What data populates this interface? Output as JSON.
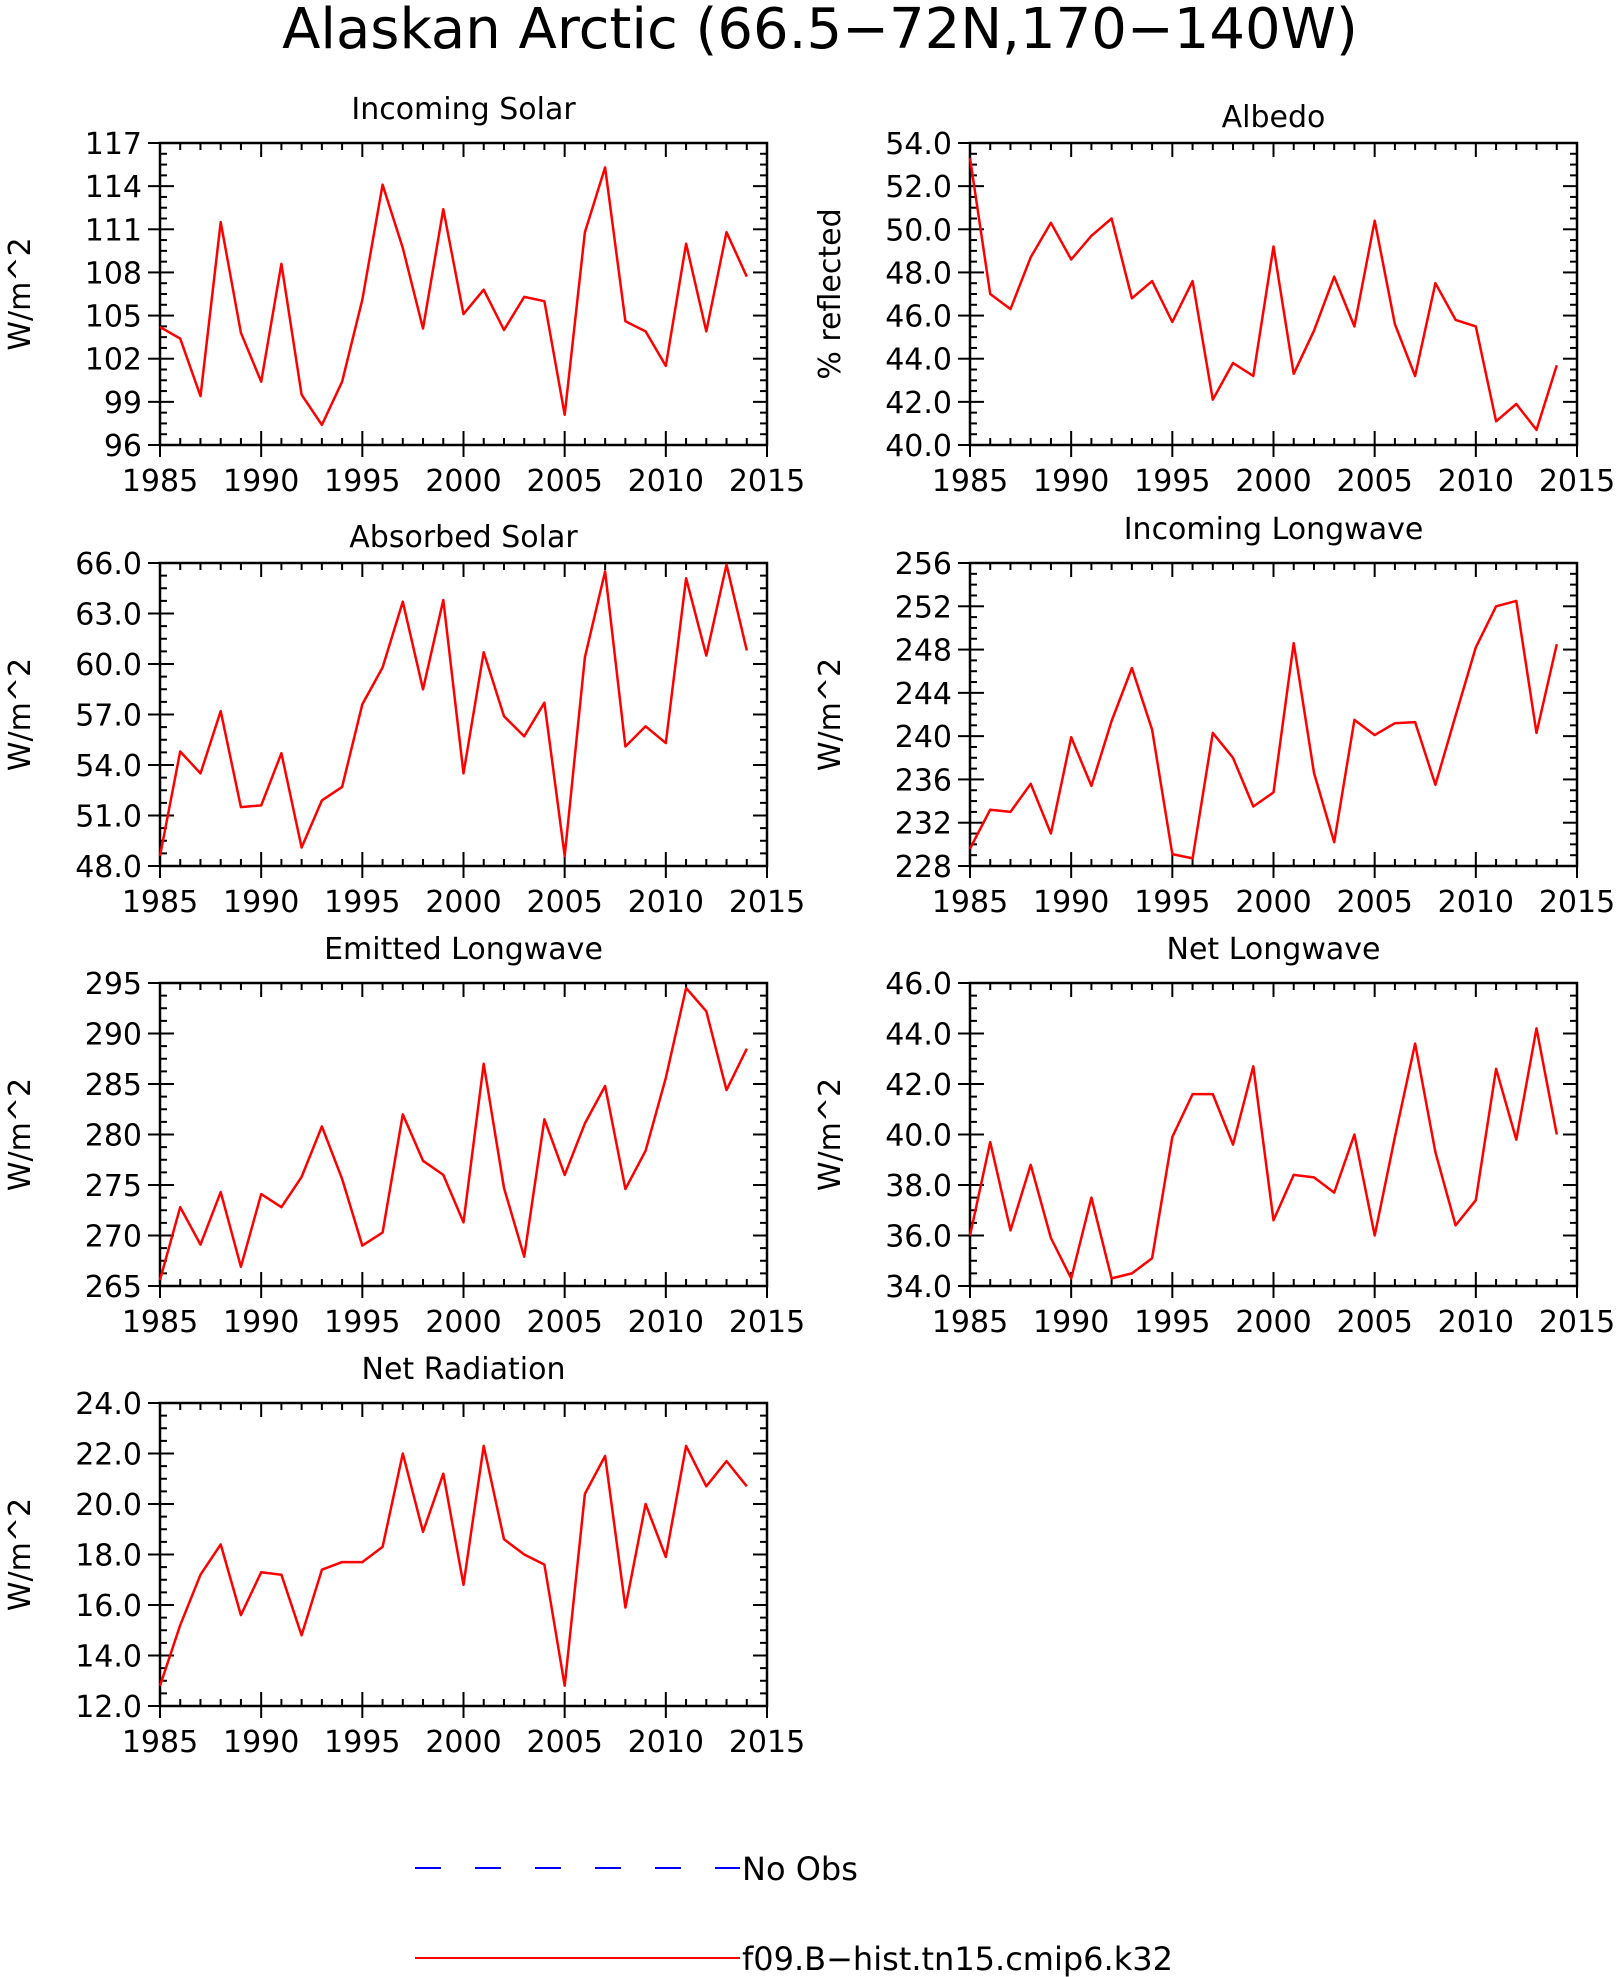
{
  "figure": {
    "title": "Alaskan Arctic (66.5−72N,170−140W)",
    "series_color": "#ff0000",
    "obs_color": "#0000ff"
  },
  "legend": [
    {
      "label": "No Obs",
      "style": "dashed",
      "color": "#0000ff"
    },
    {
      "label": "f09.B−hist.tn15.cmip6.k32",
      "style": "solid",
      "color": "#ff0000"
    }
  ],
  "chart_data": [
    {
      "type": "line",
      "title": "Incoming Solar",
      "ylabel": "W/m^2",
      "xlim": [
        1985,
        2015
      ],
      "xticks": [
        1985,
        1990,
        1995,
        2000,
        2005,
        2010,
        2015
      ],
      "ylim": [
        96,
        117
      ],
      "yticks": [
        "96",
        "99",
        "102",
        "105",
        "108",
        "111",
        "114",
        "117"
      ],
      "x": [
        1985,
        1986,
        1987,
        1988,
        1989,
        1990,
        1991,
        1992,
        1993,
        1994,
        1995,
        1996,
        1997,
        1998,
        1999,
        2000,
        2001,
        2002,
        2003,
        2004,
        2005,
        2006,
        2007,
        2008,
        2009,
        2010,
        2011,
        2012,
        2013,
        2014
      ],
      "series": [
        {
          "values": [
            104.2,
            103.4,
            99.4,
            111.5,
            103.8,
            100.4,
            108.6,
            99.5,
            97.4,
            100.4,
            106.1,
            114.1,
            109.7,
            104.1,
            112.4,
            105.1,
            106.8,
            104.0,
            106.3,
            106.0,
            98.1,
            110.8,
            115.3,
            104.6,
            103.9,
            101.5,
            110.0,
            103.9,
            110.8,
            107.7
          ]
        }
      ]
    },
    {
      "type": "line",
      "title": "Albedo",
      "ylabel": "% reflected",
      "xlim": [
        1985,
        2015
      ],
      "xticks": [
        1985,
        1990,
        1995,
        2000,
        2005,
        2010,
        2015
      ],
      "ylim": [
        40,
        54
      ],
      "yticks": [
        "40.0",
        "42.0",
        "44.0",
        "46.0",
        "48.0",
        "50.0",
        "52.0",
        "54.0"
      ],
      "x": [
        1985,
        1986,
        1987,
        1988,
        1989,
        1990,
        1991,
        1992,
        1993,
        1994,
        1995,
        1996,
        1997,
        1998,
        1999,
        2000,
        2001,
        2002,
        2003,
        2004,
        2005,
        2006,
        2007,
        2008,
        2009,
        2010,
        2011,
        2012,
        2013,
        2014
      ],
      "series": [
        {
          "values": [
            53.3,
            47.0,
            46.3,
            48.7,
            50.3,
            48.6,
            49.7,
            50.5,
            46.8,
            47.6,
            45.7,
            47.6,
            42.1,
            43.8,
            43.2,
            49.2,
            43.3,
            45.3,
            47.8,
            45.5,
            50.4,
            45.6,
            43.2,
            47.5,
            45.8,
            45.5,
            41.1,
            41.9,
            40.7,
            43.7
          ]
        }
      ]
    },
    {
      "type": "line",
      "title": "Absorbed Solar",
      "ylabel": "W/m^2",
      "xlim": [
        1985,
        2015
      ],
      "xticks": [
        1985,
        1990,
        1995,
        2000,
        2005,
        2010,
        2015
      ],
      "ylim": [
        48,
        66
      ],
      "yticks": [
        "48.0",
        "51.0",
        "54.0",
        "57.0",
        "60.0",
        "63.0",
        "66.0"
      ],
      "x": [
        1985,
        1986,
        1987,
        1988,
        1989,
        1990,
        1991,
        1992,
        1993,
        1994,
        1995,
        1996,
        1997,
        1998,
        1999,
        2000,
        2001,
        2002,
        2003,
        2004,
        2005,
        2006,
        2007,
        2008,
        2009,
        2010,
        2011,
        2012,
        2013,
        2014
      ],
      "series": [
        {
          "values": [
            48.6,
            54.8,
            53.5,
            57.2,
            51.5,
            51.6,
            54.7,
            49.1,
            51.9,
            52.7,
            57.6,
            59.8,
            63.7,
            58.5,
            63.8,
            53.5,
            60.7,
            56.9,
            55.7,
            57.7,
            48.6,
            60.4,
            65.5,
            55.1,
            56.3,
            55.3,
            65.1,
            60.5,
            65.9,
            60.8
          ]
        }
      ]
    },
    {
      "type": "line",
      "title": "Incoming Longwave",
      "ylabel": "W/m^2",
      "xlim": [
        1985,
        2015
      ],
      "xticks": [
        1985,
        1990,
        1995,
        2000,
        2005,
        2010,
        2015
      ],
      "ylim": [
        228,
        256
      ],
      "yticks": [
        "228",
        "232",
        "236",
        "240",
        "244",
        "248",
        "252",
        "256"
      ],
      "x": [
        1985,
        1986,
        1987,
        1988,
        1989,
        1990,
        1991,
        1992,
        1993,
        1994,
        1995,
        1996,
        1997,
        1998,
        1999,
        2000,
        2001,
        2002,
        2003,
        2004,
        2005,
        2006,
        2007,
        2008,
        2009,
        2010,
        2011,
        2012,
        2013,
        2014
      ],
      "series": [
        {
          "values": [
            229.6,
            233.2,
            233.0,
            235.6,
            231.0,
            239.9,
            235.4,
            241.4,
            246.3,
            240.6,
            229.1,
            228.7,
            240.3,
            238.0,
            233.5,
            234.8,
            248.6,
            236.6,
            230.2,
            241.5,
            240.1,
            241.2,
            241.3,
            235.5,
            241.9,
            248.2,
            252.0,
            252.5,
            240.3,
            248.5
          ]
        }
      ]
    },
    {
      "type": "line",
      "title": "Emitted Longwave",
      "ylabel": "W/m^2",
      "xlim": [
        1985,
        2015
      ],
      "xticks": [
        1985,
        1990,
        1995,
        2000,
        2005,
        2010,
        2015
      ],
      "ylim": [
        265,
        295
      ],
      "yticks": [
        "265",
        "270",
        "275",
        "280",
        "285",
        "290",
        "295"
      ],
      "x": [
        1985,
        1986,
        1987,
        1988,
        1989,
        1990,
        1991,
        1992,
        1993,
        1994,
        1995,
        1996,
        1997,
        1998,
        1999,
        2000,
        2001,
        2002,
        2003,
        2004,
        2005,
        2006,
        2007,
        2008,
        2009,
        2010,
        2011,
        2012,
        2013,
        2014
      ],
      "series": [
        {
          "values": [
            265.6,
            272.8,
            269.1,
            274.3,
            266.9,
            274.1,
            272.8,
            275.8,
            280.8,
            275.6,
            269.0,
            270.3,
            282.0,
            277.4,
            276.0,
            271.3,
            287.0,
            274.7,
            267.9,
            281.5,
            276.0,
            281.1,
            284.8,
            274.6,
            278.4,
            285.6,
            294.5,
            292.2,
            284.4,
            288.5
          ]
        }
      ]
    },
    {
      "type": "line",
      "title": "Net Longwave",
      "ylabel": "W/m^2",
      "xlim": [
        1985,
        2015
      ],
      "xticks": [
        1985,
        1990,
        1995,
        2000,
        2005,
        2010,
        2015
      ],
      "ylim": [
        34,
        46
      ],
      "yticks": [
        "34.0",
        "36.0",
        "38.0",
        "40.0",
        "42.0",
        "44.0",
        "46.0"
      ],
      "x": [
        1985,
        1986,
        1987,
        1988,
        1989,
        1990,
        1991,
        1992,
        1993,
        1994,
        1995,
        1996,
        1997,
        1998,
        1999,
        2000,
        2001,
        2002,
        2003,
        2004,
        2005,
        2006,
        2007,
        2008,
        2009,
        2010,
        2011,
        2012,
        2013,
        2014
      ],
      "series": [
        {
          "values": [
            36.0,
            39.7,
            36.2,
            38.8,
            35.9,
            34.3,
            37.5,
            34.3,
            34.5,
            35.1,
            39.9,
            41.6,
            41.6,
            39.6,
            42.7,
            36.6,
            38.4,
            38.3,
            37.7,
            40.0,
            36.0,
            39.9,
            43.6,
            39.3,
            36.4,
            37.4,
            42.6,
            39.8,
            44.2,
            40.0
          ]
        }
      ]
    },
    {
      "type": "line",
      "title": "Net Radiation",
      "ylabel": "W/m^2",
      "xlim": [
        1985,
        2015
      ],
      "xticks": [
        1985,
        1990,
        1995,
        2000,
        2005,
        2010,
        2015
      ],
      "ylim": [
        12,
        24
      ],
      "yticks": [
        "12.0",
        "14.0",
        "16.0",
        "18.0",
        "20.0",
        "22.0",
        "24.0"
      ],
      "x": [
        1985,
        1986,
        1987,
        1988,
        1989,
        1990,
        1991,
        1992,
        1993,
        1994,
        1995,
        1996,
        1997,
        1998,
        1999,
        2000,
        2001,
        2002,
        2003,
        2004,
        2005,
        2006,
        2007,
        2008,
        2009,
        2010,
        2011,
        2012,
        2013,
        2014
      ],
      "series": [
        {
          "values": [
            12.8,
            15.2,
            17.2,
            18.4,
            15.6,
            17.3,
            17.2,
            14.8,
            17.4,
            17.7,
            17.7,
            18.3,
            22.0,
            18.9,
            21.2,
            16.8,
            22.3,
            18.6,
            18.0,
            17.6,
            12.8,
            20.4,
            21.9,
            15.9,
            20.0,
            17.9,
            22.3,
            20.7,
            21.7,
            20.7
          ]
        }
      ]
    }
  ]
}
